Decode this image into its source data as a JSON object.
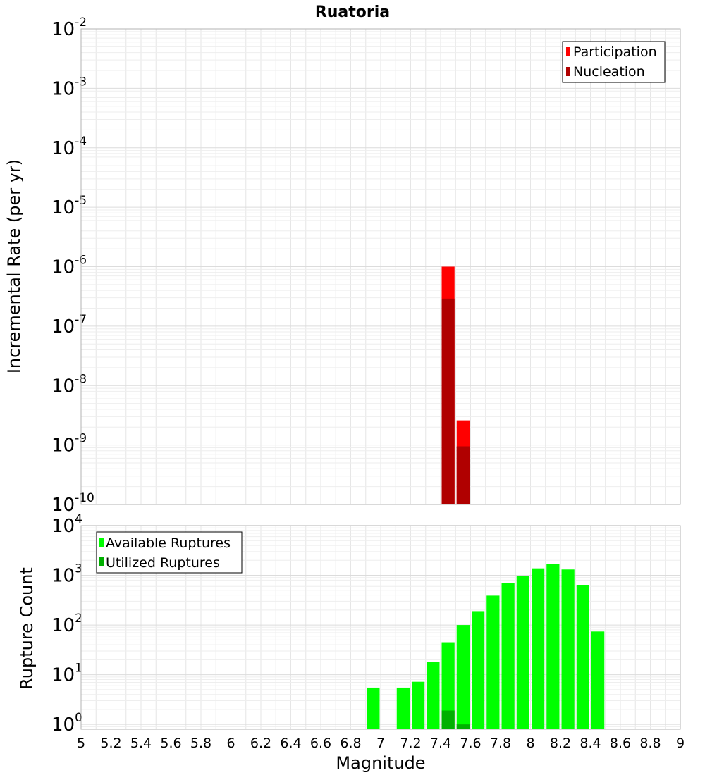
{
  "chart_data": [
    {
      "type": "bar",
      "title": "Ruatoria",
      "xlabel": "",
      "ylabel": "Incremental Rate (per yr)",
      "yscale": "log",
      "ylim": [
        1e-10,
        0.01
      ],
      "xlim": [
        5,
        9
      ],
      "ytick_exponents": [
        -10,
        -9,
        -8,
        -7,
        -6,
        -5,
        -4,
        -3,
        -2
      ],
      "grid": true,
      "legend_position": "top-right",
      "series": [
        {
          "name": "Participation",
          "color": "#ff0000",
          "x": [
            7.45,
            7.55
          ],
          "values": [
            1e-06,
            2.6e-09
          ]
        },
        {
          "name": "Nucleation",
          "color": "#b00000",
          "x": [
            7.45,
            7.55
          ],
          "values": [
            2.9e-07,
            9.5e-10
          ]
        }
      ]
    },
    {
      "type": "bar",
      "xlabel": "Magnitude",
      "ylabel": "Rupture Count",
      "yscale": "log",
      "ylim": [
        0.8,
        10000
      ],
      "xlim": [
        5,
        9
      ],
      "ytick_exponents": [
        0,
        1,
        2,
        3,
        4
      ],
      "xticks": [
        "5",
        "5.2",
        "5.4",
        "5.6",
        "5.8",
        "6",
        "6.2",
        "6.4",
        "6.6",
        "6.8",
        "7",
        "7.2",
        "7.4",
        "7.6",
        "7.8",
        "8",
        "8.2",
        "8.4",
        "8.6",
        "8.8",
        "9"
      ],
      "grid": true,
      "legend_position": "top-left",
      "series": [
        {
          "name": "Available Ruptures",
          "color": "#00ff00",
          "x": [
            6.95,
            7.15,
            7.25,
            7.35,
            7.45,
            7.55,
            7.65,
            7.75,
            7.85,
            7.95,
            8.05,
            8.15,
            8.25,
            8.35,
            8.45
          ],
          "values": [
            5.5,
            5.5,
            7.2,
            18,
            45,
            100,
            190,
            390,
            690,
            960,
            1380,
            1690,
            1310,
            630,
            74
          ]
        },
        {
          "name": "Utilized Ruptures",
          "color": "#00b000",
          "x": [
            7.45,
            7.55
          ],
          "values": [
            1.9,
            1.0
          ]
        }
      ]
    }
  ]
}
